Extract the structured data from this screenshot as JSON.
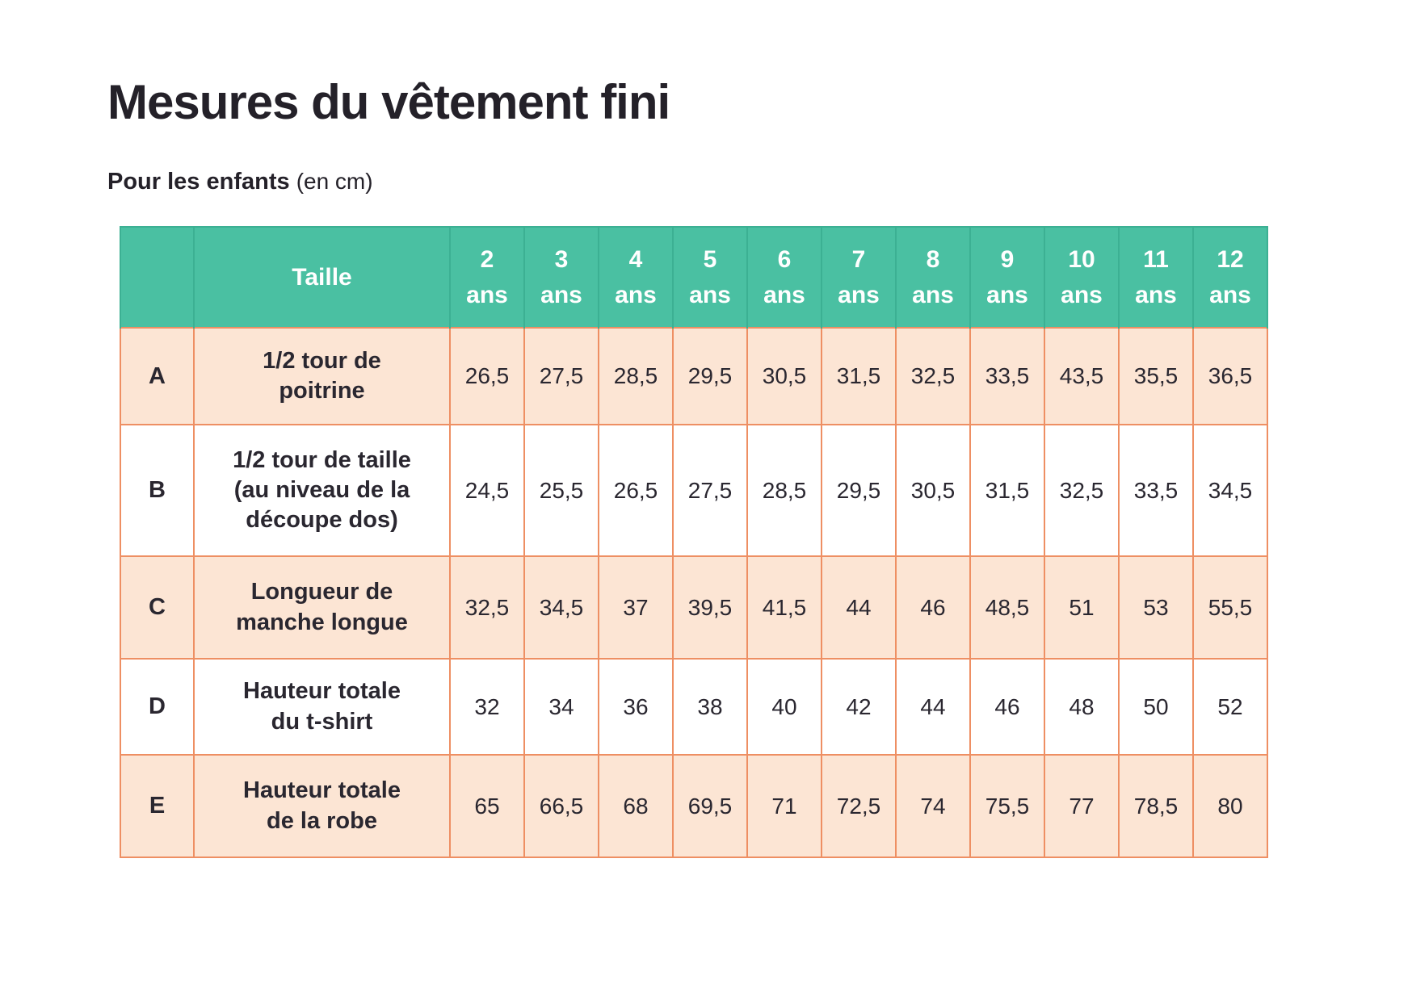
{
  "page": {
    "title": "Mesures du vêtement fini",
    "subtitle": "Pour les enfants",
    "subtitle_note": "(en cm)"
  },
  "colors": {
    "header_bg": "#4ac0a2",
    "header_divider": "#3cb093",
    "body_border": "#ee8f63",
    "row_peach": "#fce5d4",
    "row_white": "#ffffff",
    "header_text": "#ffffff",
    "text": "#2a2730"
  },
  "table": {
    "corner_label": "",
    "size_header": "Taille",
    "age_columns": [
      "2\nans",
      "3\nans",
      "4\nans",
      "5\nans",
      "6\nans",
      "7\nans",
      "8\nans",
      "9\nans",
      "10\nans",
      "11\nans",
      "12\nans"
    ],
    "rows": [
      {
        "letter": "A",
        "label": "1/2 tour de\npoitrine",
        "values": [
          "26,5",
          "27,5",
          "28,5",
          "29,5",
          "30,5",
          "31,5",
          "32,5",
          "33,5",
          "43,5",
          "35,5",
          "36,5"
        ]
      },
      {
        "letter": "B",
        "label": "1/2 tour de taille\n(au niveau de la\ndécoupe dos)",
        "values": [
          "24,5",
          "25,5",
          "26,5",
          "27,5",
          "28,5",
          "29,5",
          "30,5",
          "31,5",
          "32,5",
          "33,5",
          "34,5"
        ]
      },
      {
        "letter": "C",
        "label": "Longueur de\nmanche longue",
        "values": [
          "32,5",
          "34,5",
          "37",
          "39,5",
          "41,5",
          "44",
          "46",
          "48,5",
          "51",
          "53",
          "55,5"
        ]
      },
      {
        "letter": "D",
        "label": "Hauteur totale\ndu t-shirt",
        "values": [
          "32",
          "34",
          "36",
          "38",
          "40",
          "42",
          "44",
          "46",
          "48",
          "50",
          "52"
        ]
      },
      {
        "letter": "E",
        "label": "Hauteur totale\nde la robe",
        "values": [
          "65",
          "66,5",
          "68",
          "69,5",
          "71",
          "72,5",
          "74",
          "75,5",
          "77",
          "78,5",
          "80"
        ]
      }
    ]
  }
}
